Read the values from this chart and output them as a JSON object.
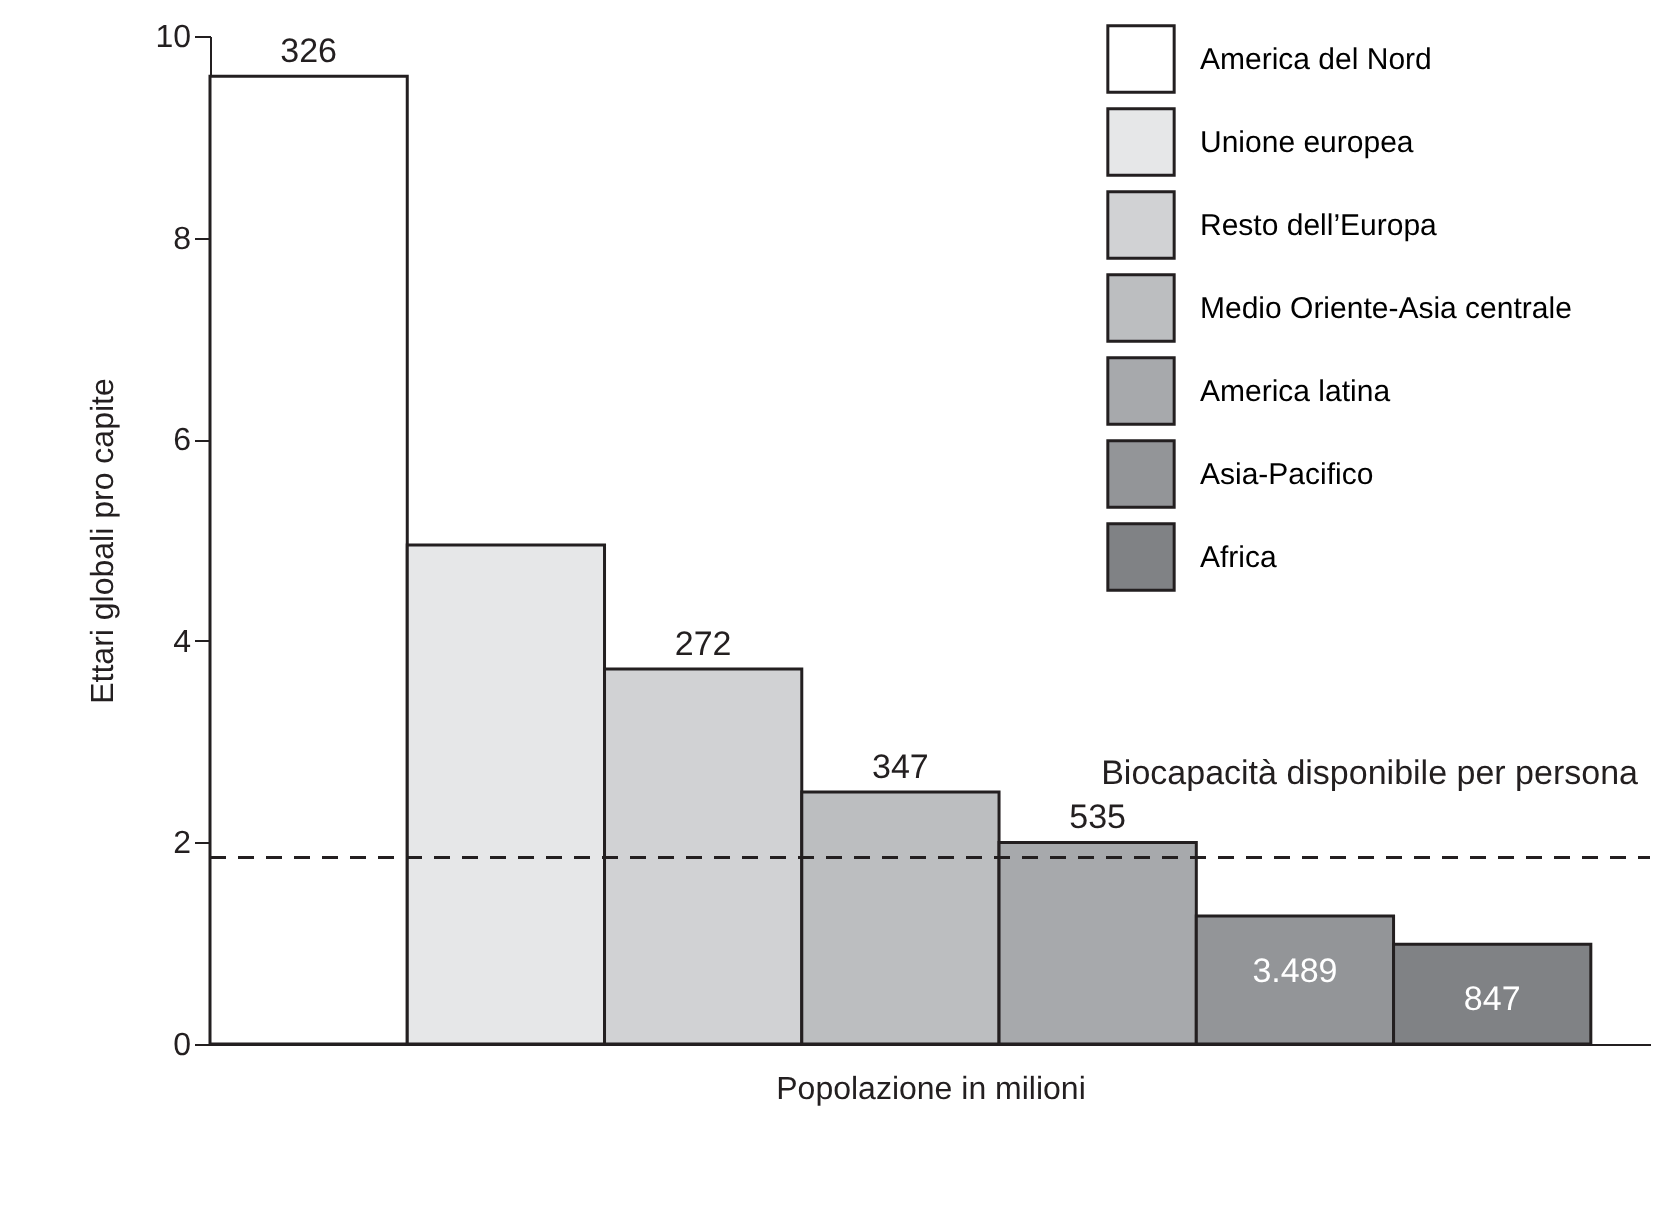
{
  "chart_data": {
    "type": "bar",
    "xlabel": "Popolazione in milioni",
    "ylabel": "Ettari globali pro capite",
    "categories": [
      null,
      null,
      null,
      null,
      null,
      null,
      null
    ],
    "ylim": [
      0,
      10
    ],
    "yticks": [
      0,
      2,
      4,
      6,
      8,
      10
    ],
    "tick_labels": "y",
    "grid": false,
    "legend": "top right",
    "series": [
      {
        "name": "America del Nord",
        "color": "#ffffff",
        "values": [
          9.6,
          null,
          null,
          null,
          null,
          null,
          null
        ]
      },
      {
        "name": "Unione europea",
        "color": "#e6e7e8",
        "values": [
          null,
          4.95,
          null,
          null,
          null,
          null,
          null
        ]
      },
      {
        "name": "Resto dell’Europa",
        "color": "#d1d2d4",
        "values": [
          null,
          null,
          3.72,
          null,
          null,
          null,
          null
        ]
      },
      {
        "name": "Medio Oriente-Asia centrale",
        "color": "#bcbec0",
        "values": [
          null,
          null,
          null,
          2.5,
          null,
          null,
          null
        ]
      },
      {
        "name": "America latina",
        "color": "#a7a9ac",
        "values": [
          null,
          null,
          null,
          null,
          2.0,
          null,
          null
        ]
      },
      {
        "name": "Asia-Pacifico",
        "color": "#939598",
        "values": [
          null,
          null,
          null,
          null,
          null,
          1.27,
          null
        ]
      },
      {
        "name": "Africa",
        "color": "#808285",
        "values": [
          null,
          null,
          null,
          null,
          null,
          null,
          0.99
        ]
      }
    ],
    "annotations": [
      {
        "text": "326",
        "y": 9.6
      },
      {
        "text": "272",
        "y": 3.72
      },
      {
        "text": "347",
        "y": 2.5
      },
      {
        "text": "535",
        "y": 2.0
      },
      {
        "text": "3.489",
        "y": 1.27
      },
      {
        "text": "847",
        "y": 0.99
      }
    ],
    "ref_lines": [
      {
        "axis": "y",
        "value": 1.85,
        "label": "Biocapacità disponibile per persona",
        "line_style": "dashed"
      }
    ]
  }
}
